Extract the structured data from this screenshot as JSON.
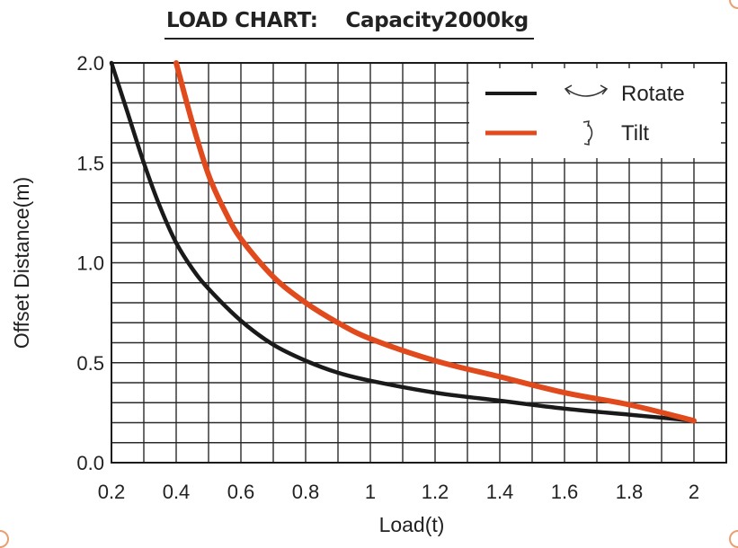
{
  "chart_data": {
    "type": "line",
    "title": "LOAD CHART:    Capacity2000kg",
    "xlabel": "Load(t)",
    "ylabel": "Offset Distance(m)",
    "xlim": [
      0.2,
      2.1
    ],
    "ylim": [
      0,
      2.0
    ],
    "x_ticks": [
      "0.2",
      "0.4",
      "0.6",
      "0.8",
      "1",
      "1.2",
      "1.4",
      "1.6",
      "1.8",
      "2"
    ],
    "y_ticks": [
      "0.0",
      "0.5",
      "1.0",
      "1.5",
      "2.0"
    ],
    "grid": true,
    "legend_position": "top-right",
    "series": [
      {
        "name": "Rotate",
        "color": "#1a1a1a",
        "icon": "rotate-arrows-icon",
        "x": [
          0.2,
          0.25,
          0.3,
          0.35,
          0.4,
          0.45,
          0.5,
          0.6,
          0.7,
          0.8,
          0.9,
          1.0,
          1.2,
          1.4,
          1.6,
          1.8,
          2.0
        ],
        "y": [
          2.0,
          1.75,
          1.5,
          1.28,
          1.1,
          0.97,
          0.87,
          0.71,
          0.59,
          0.51,
          0.45,
          0.41,
          0.35,
          0.31,
          0.27,
          0.24,
          0.21
        ]
      },
      {
        "name": "Tilt",
        "color": "#e04a1c",
        "icon": "tilt-arrows-icon",
        "x": [
          0.4,
          0.45,
          0.5,
          0.55,
          0.6,
          0.7,
          0.8,
          0.9,
          1.0,
          1.2,
          1.4,
          1.6,
          1.8,
          2.0
        ],
        "y": [
          2.0,
          1.7,
          1.44,
          1.26,
          1.12,
          0.93,
          0.8,
          0.7,
          0.62,
          0.51,
          0.43,
          0.35,
          0.29,
          0.21
        ]
      }
    ]
  }
}
